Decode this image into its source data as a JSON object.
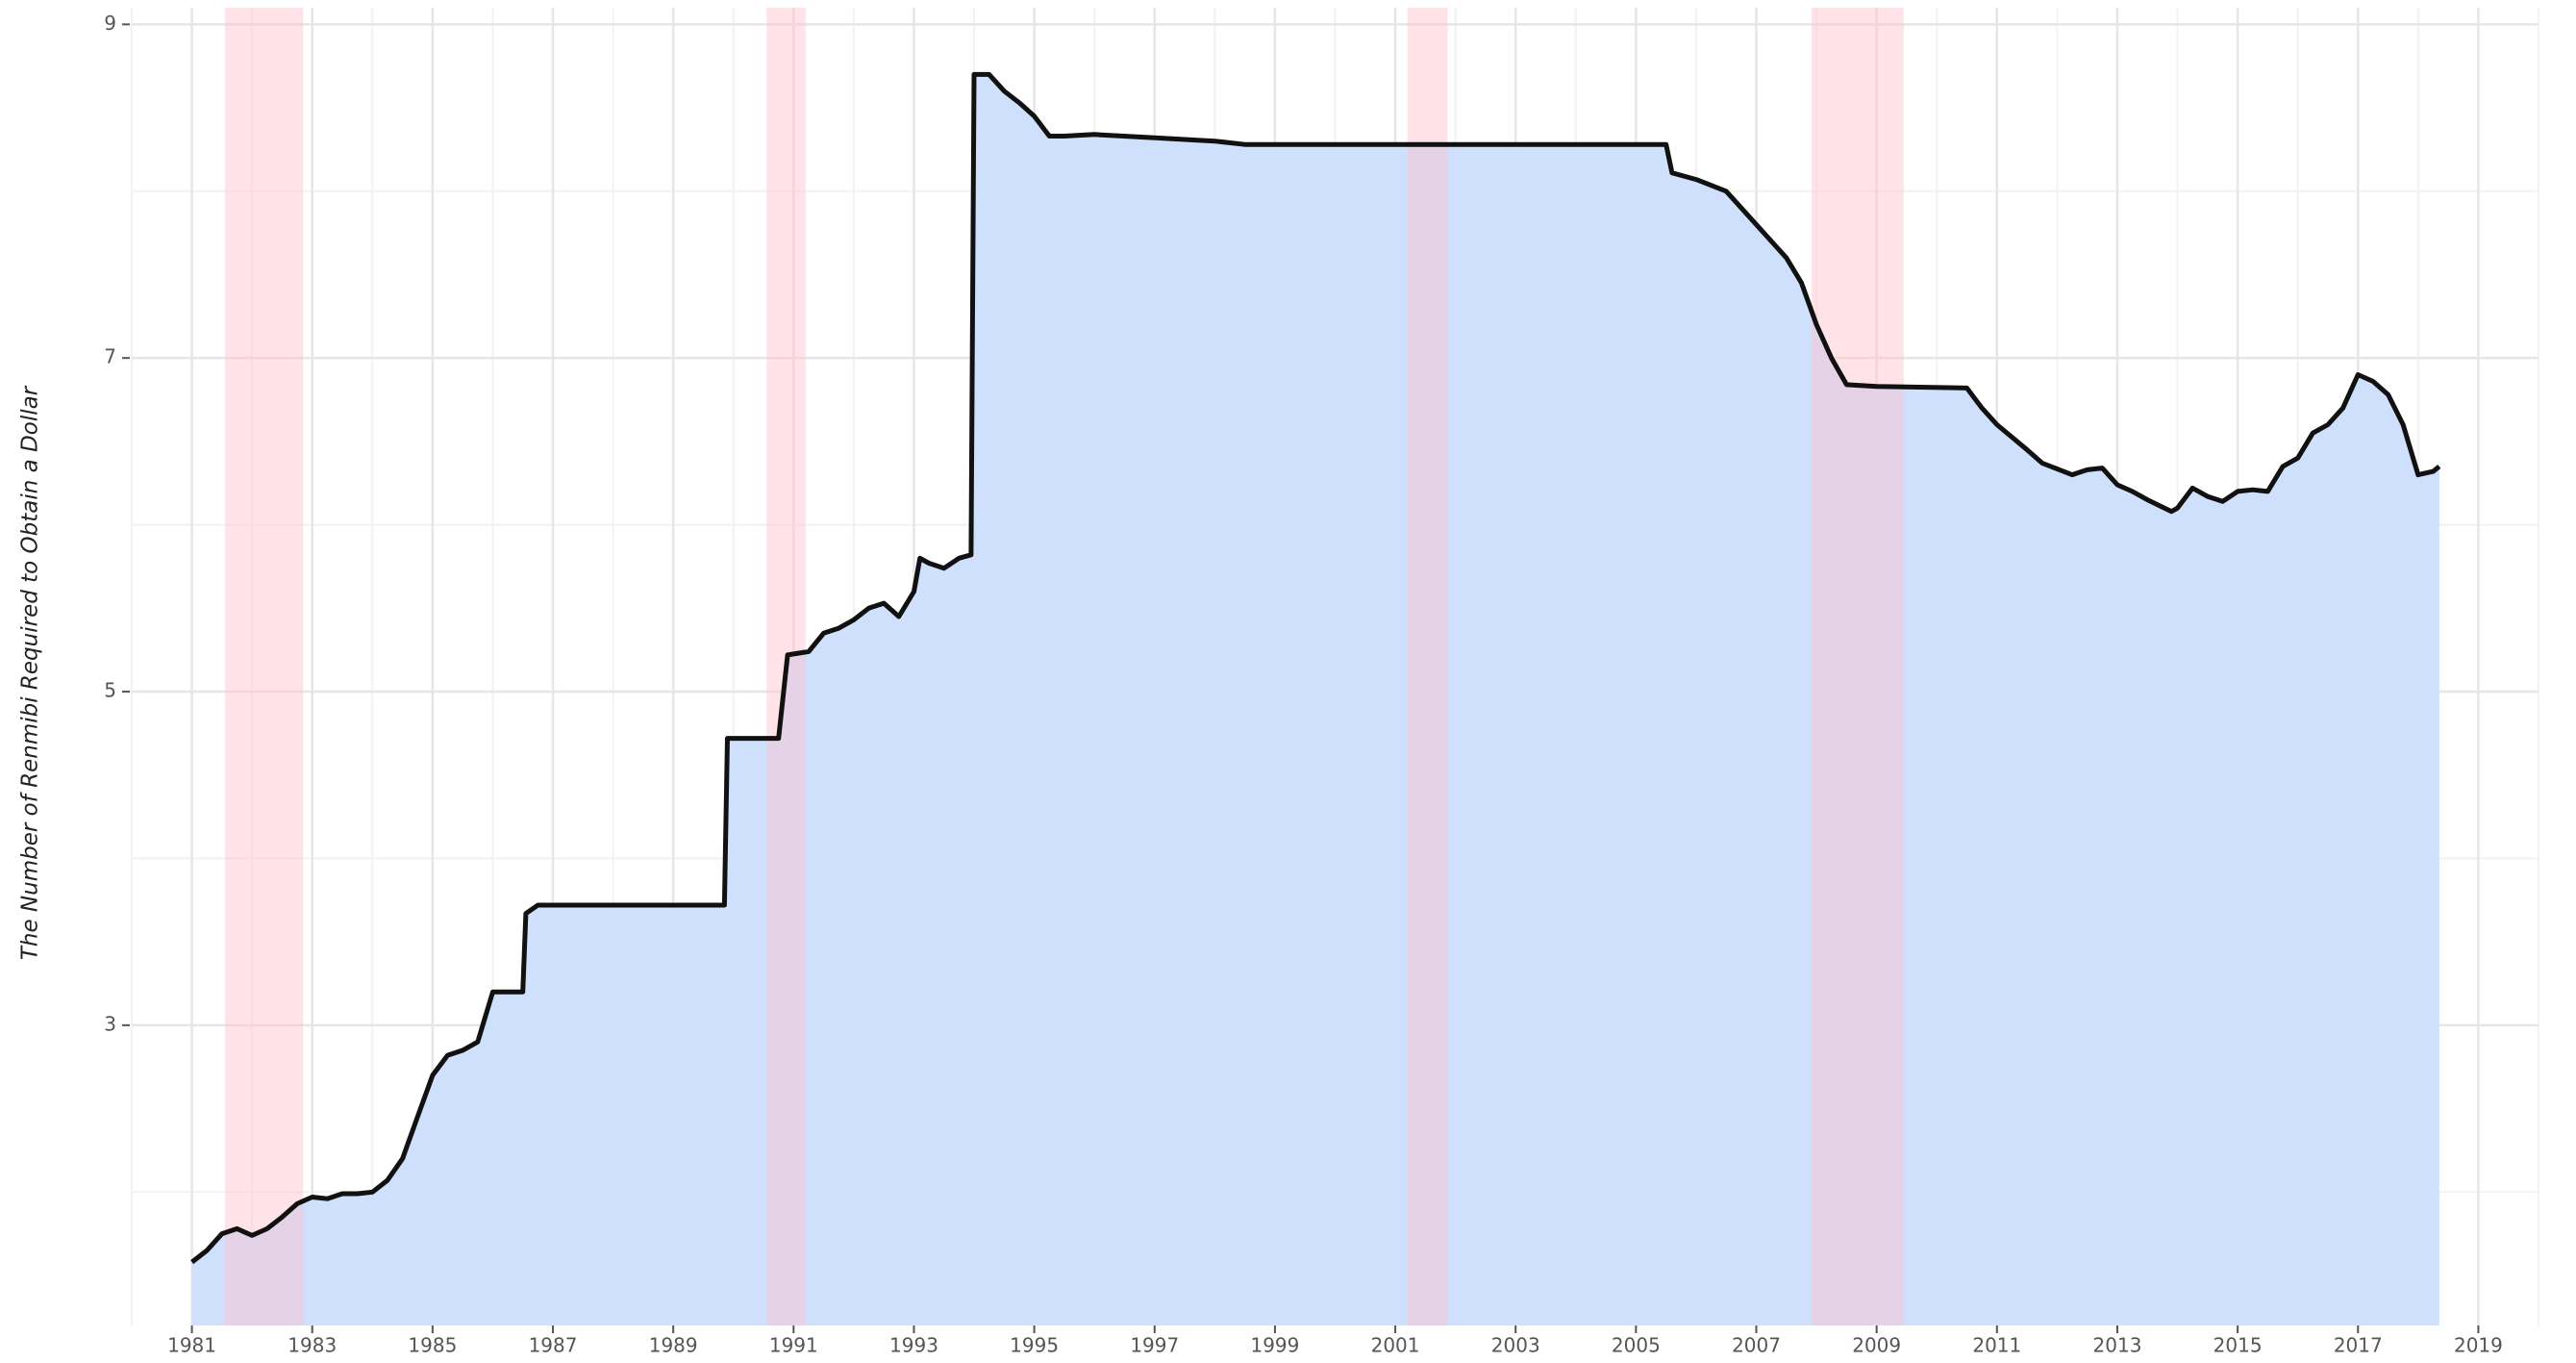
{
  "chart_data": {
    "type": "area",
    "ylabel": "The Number of Renmibi Required to Obtain a Dollar",
    "x": [
      1981.0,
      1981.25,
      1981.5,
      1981.75,
      1982.0,
      1982.25,
      1982.5,
      1982.75,
      1983.0,
      1983.25,
      1983.5,
      1983.75,
      1984.0,
      1984.25,
      1984.5,
      1984.75,
      1985.0,
      1985.25,
      1985.5,
      1985.75,
      1986.0,
      1986.25,
      1986.5,
      1986.55,
      1986.75,
      1987.0,
      1988.0,
      1989.0,
      1989.85,
      1989.9,
      1990.75,
      1990.9,
      1991.25,
      1991.5,
      1991.75,
      1992.0,
      1992.25,
      1992.5,
      1992.75,
      1993.0,
      1993.1,
      1993.25,
      1993.5,
      1993.75,
      1993.95,
      1994.0,
      1994.25,
      1994.5,
      1994.75,
      1995.0,
      1995.25,
      1995.5,
      1996.0,
      1997.0,
      1998.0,
      1998.5,
      1999.0,
      2005.5,
      2005.6,
      2006.0,
      2006.5,
      2007.0,
      2007.5,
      2007.75,
      2008.0,
      2008.25,
      2008.5,
      2009.0,
      2010.5,
      2010.75,
      2011.0,
      2011.5,
      2011.75,
      2012.25,
      2012.5,
      2012.75,
      2013.0,
      2013.25,
      2013.5,
      2013.9,
      2014.0,
      2014.25,
      2014.5,
      2014.75,
      2015.0,
      2015.25,
      2015.5,
      2015.75,
      2016.0,
      2016.25,
      2016.5,
      2016.75,
      2017.0,
      2017.25,
      2017.5,
      2017.75,
      2018.0,
      2018.25,
      2018.35
    ],
    "series": [
      {
        "color": "#111111",
        "fill": "#cfe0fc",
        "values": [
          1.58,
          1.65,
          1.75,
          1.78,
          1.74,
          1.78,
          1.85,
          1.93,
          1.97,
          1.96,
          1.99,
          1.99,
          2.0,
          2.07,
          2.2,
          2.45,
          2.7,
          2.82,
          2.85,
          2.9,
          3.2,
          3.2,
          3.2,
          3.67,
          3.72,
          3.72,
          3.72,
          3.72,
          3.72,
          4.72,
          4.72,
          5.22,
          5.24,
          5.35,
          5.38,
          5.43,
          5.5,
          5.53,
          5.45,
          5.6,
          5.8,
          5.77,
          5.74,
          5.8,
          5.82,
          8.7,
          8.7,
          8.6,
          8.53,
          8.45,
          8.33,
          8.33,
          8.34,
          8.32,
          8.3,
          8.28,
          8.28,
          8.28,
          8.11,
          8.07,
          8.0,
          7.8,
          7.6,
          7.45,
          7.2,
          7.0,
          6.84,
          6.83,
          6.82,
          6.7,
          6.6,
          6.45,
          6.37,
          6.3,
          6.33,
          6.34,
          6.24,
          6.2,
          6.15,
          6.08,
          6.1,
          6.22,
          6.17,
          6.14,
          6.2,
          6.21,
          6.2,
          6.35,
          6.4,
          6.55,
          6.6,
          6.7,
          6.9,
          6.86,
          6.78,
          6.6,
          6.3,
          6.32,
          6.35
        ]
      }
    ],
    "recessions": [
      [
        1981.55,
        1982.85
      ],
      [
        1990.55,
        1991.2
      ],
      [
        2001.2,
        2001.87
      ],
      [
        2007.92,
        2009.45
      ]
    ],
    "recession_color": "rgba(255,192,203,0.45)",
    "xlim": [
      1980,
      2020
    ],
    "xticks": [
      1981,
      1983,
      1985,
      1987,
      1989,
      1991,
      1993,
      1995,
      1997,
      1999,
      2001,
      2003,
      2005,
      2007,
      2009,
      2011,
      2013,
      2015,
      2017,
      2019
    ],
    "x_minor_grid": [
      1980,
      1982,
      1984,
      1986,
      1988,
      1990,
      1992,
      1994,
      1996,
      1998,
      2000,
      2002,
      2004,
      2006,
      2008,
      2010,
      2012,
      2014,
      2016,
      2018,
      2020
    ],
    "ylim": [
      1.2,
      9.1
    ],
    "yticks": [
      3,
      5,
      7,
      9
    ],
    "y_minor_grid": [
      2,
      4,
      6,
      8
    ],
    "grid": true
  }
}
